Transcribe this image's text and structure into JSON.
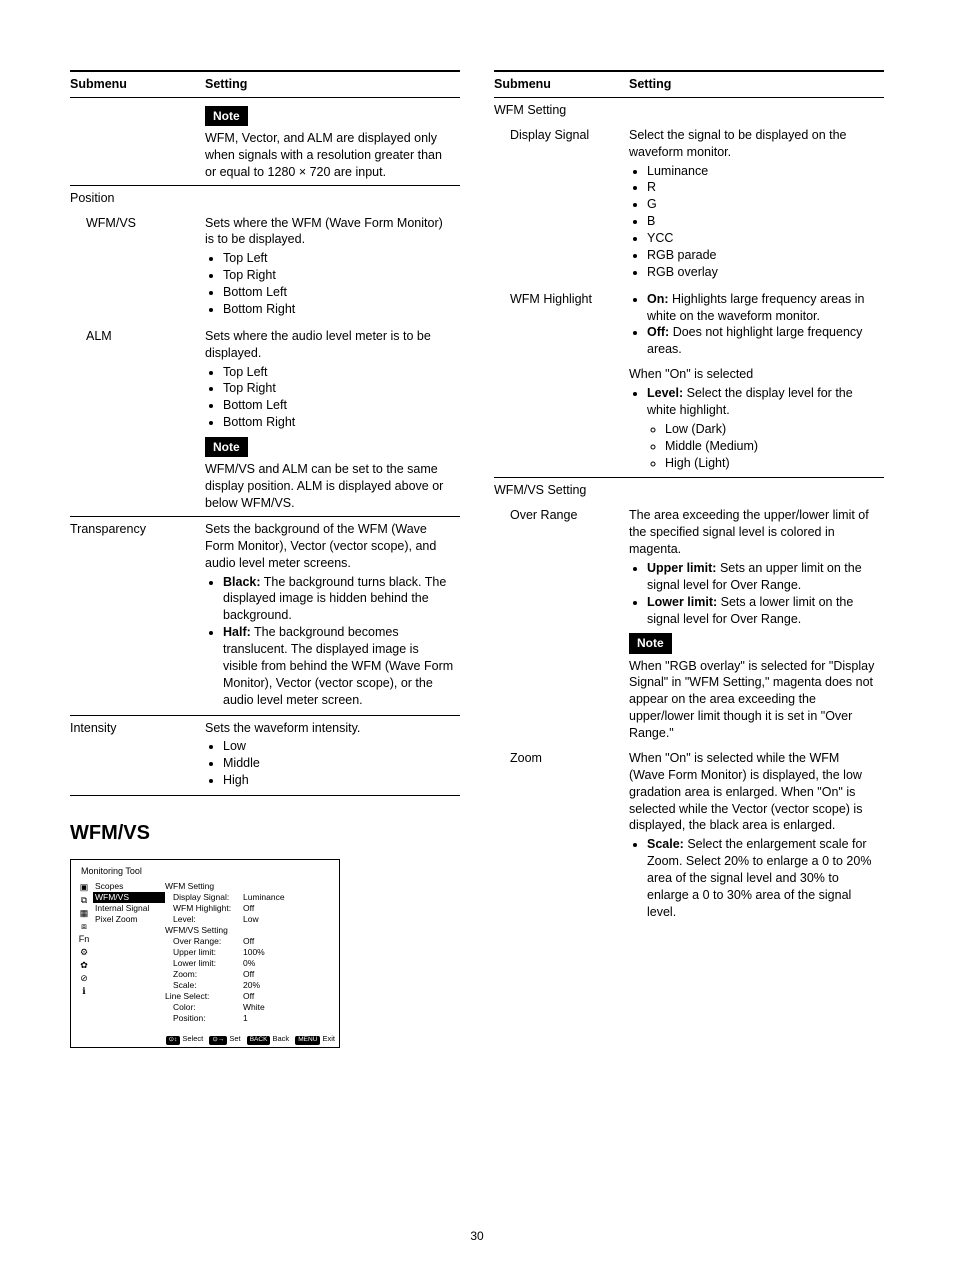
{
  "page_number": "30",
  "headers": {
    "submenu": "Submenu",
    "setting": "Setting"
  },
  "section_title": "WFM/VS",
  "left": {
    "note1_label": "Note",
    "note1_text": "WFM, Vector, and ALM are displayed only when signals with a resolution greater than or equal to 1280 × 720 are input.",
    "position": {
      "label": "Position"
    },
    "wfmvs": {
      "label": "WFM/VS",
      "desc": "Sets where the WFM (Wave Form Monitor) is to be displayed.",
      "opts": [
        "Top Left",
        "Top Right",
        "Bottom Left",
        "Bottom Right"
      ]
    },
    "alm": {
      "label": "ALM",
      "desc": "Sets where the audio level meter is to be displayed.",
      "opts": [
        "Top Left",
        "Top Right",
        "Bottom Left",
        "Bottom Right"
      ],
      "note_label": "Note",
      "note_text": "WFM/VS and ALM can be set to the same display position. ALM is displayed above or below WFM/VS."
    },
    "transparency": {
      "label": "Transparency",
      "desc": "Sets the background of the WFM (Wave Form Monitor), Vector (vector scope), and audio level meter screens.",
      "black_label": "Black:",
      "black_text": "The background turns black. The displayed image is hidden behind the background.",
      "half_label": "Half:",
      "half_text": "The background becomes translucent. The displayed image is visible from behind the WFM (Wave Form Monitor), Vector (vector scope), or the audio level meter screen."
    },
    "intensity": {
      "label": "Intensity",
      "desc": "Sets the waveform intensity.",
      "opts": [
        "Low",
        "Middle",
        "High"
      ]
    }
  },
  "right": {
    "wfm_setting": {
      "label": "WFM Setting"
    },
    "display_signal": {
      "label": "Display Signal",
      "desc": "Select the signal to be displayed on the waveform monitor.",
      "opts": [
        "Luminance",
        "R",
        "G",
        "B",
        "YCC",
        "RGB parade",
        "RGB overlay"
      ]
    },
    "wfm_highlight": {
      "label": "WFM Highlight",
      "on_label": "On:",
      "on_text": "Highlights large frequency areas in white on the waveform monitor.",
      "off_label": "Off:",
      "off_text": "Does not highlight large frequency areas.",
      "when_on": "When \"On\" is selected",
      "level_label": "Level:",
      "level_text": "Select the display level for the white highlight.",
      "level_opts": [
        "Low (Dark)",
        "Middle (Medium)",
        "High (Light)"
      ]
    },
    "wfmvs_setting": {
      "label": "WFM/VS Setting"
    },
    "over_range": {
      "label": "Over Range",
      "desc": "The area exceeding the upper/lower limit of the specified signal level is colored in magenta.",
      "upper_label": "Upper limit:",
      "upper_text": "Sets an upper limit on the signal level for Over Range.",
      "lower_label": "Lower limit:",
      "lower_text": "Sets a lower limit on the signal level for Over Range.",
      "note_label": "Note",
      "note_text": "When \"RGB overlay\" is selected for \"Display Signal\" in \"WFM Setting,\" magenta does not appear on the area exceeding the upper/lower limit though it is set in \"Over Range.\""
    },
    "zoom": {
      "label": "Zoom",
      "desc": "When \"On\" is selected while the WFM (Wave Form Monitor) is displayed, the low gradation area is enlarged. When \"On\" is selected while the Vector (vector scope) is displayed, the black area is enlarged.",
      "scale_label": "Scale:",
      "scale_text": "Select the enlargement scale for Zoom. Select 20% to enlarge a 0 to 20% area of the signal level and 30% to enlarge a 0 to 30% area of the signal level."
    }
  },
  "osd": {
    "title": "Monitoring Tool",
    "nav": [
      "Scopes",
      "WFM/VS",
      "Internal Signal",
      "Pixel Zoom"
    ],
    "icons": [
      "▣",
      "⧉",
      "▦",
      "⧈",
      "Fn",
      "⚙",
      "✿",
      "⊘",
      "ℹ"
    ],
    "rows": [
      {
        "hdr": "WFM Setting"
      },
      {
        "l": "Display Signal:",
        "v": "Luminance",
        "i": 1
      },
      {
        "l": "WFM Highlight:",
        "v": "Off",
        "i": 1
      },
      {
        "l": "Level:",
        "v": "Low",
        "i": 1
      },
      {
        "hdr": "WFM/VS Setting"
      },
      {
        "l": "Over Range:",
        "v": "Off",
        "i": 1
      },
      {
        "l": "Upper limit:",
        "v": "100%",
        "i": 1
      },
      {
        "l": "Lower limit:",
        "v": "0%",
        "i": 1
      },
      {
        "l": "Zoom:",
        "v": "Off",
        "i": 1
      },
      {
        "l": "Scale:",
        "v": "20%",
        "i": 1
      },
      {
        "l": "Line Select:",
        "v": "Off",
        "i": 0
      },
      {
        "l": "Color:",
        "v": "White",
        "i": 1
      },
      {
        "l": "Position:",
        "v": "1",
        "i": 1
      }
    ],
    "foot": [
      {
        "chip": "⊙↕",
        "t": "Select"
      },
      {
        "chip": "⊙→",
        "t": "Set"
      },
      {
        "chip": "BACK",
        "t": "Back"
      },
      {
        "chip": "MENU",
        "t": "Exit"
      }
    ]
  }
}
